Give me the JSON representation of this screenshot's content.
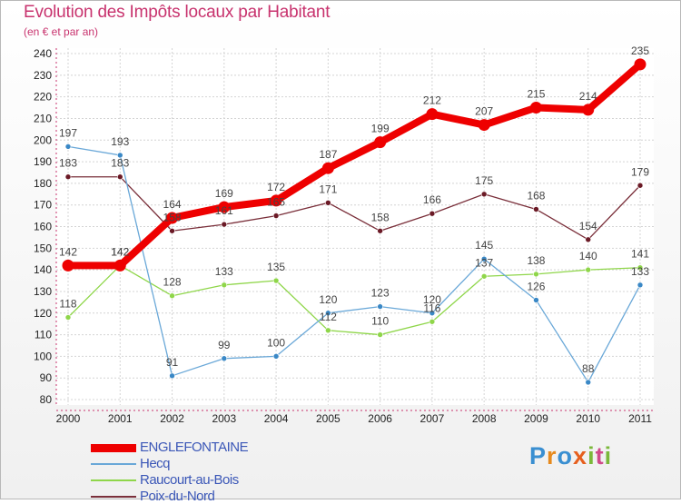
{
  "title": "Evolution des Impôts locaux par Habitant",
  "subtitle": "(en € et par an)",
  "logo": {
    "letters": [
      "P",
      "r",
      "o",
      "x",
      "i",
      "t",
      "i"
    ],
    "colors": [
      "#3a8fd1",
      "#e68a1e",
      "#3a8fd1",
      "#e65f1e",
      "#7bb83a",
      "#d04a8a",
      "#7bb83a"
    ]
  },
  "chart_data": {
    "type": "line",
    "title": "Evolution des Impôts locaux par Habitant",
    "ylabel": "(en € et par an)",
    "x": [
      "2000",
      "2001",
      "2002",
      "2003",
      "2004",
      "2005",
      "2006",
      "2007",
      "2008",
      "2009",
      "2010",
      "2011"
    ],
    "ylim": [
      80,
      240
    ],
    "yticks": [
      "80",
      "90",
      "100",
      "110",
      "120",
      "130",
      "140",
      "150",
      "160",
      "170",
      "180",
      "190",
      "200",
      "210",
      "220",
      "230",
      "240"
    ],
    "grid": true,
    "legend_position": "bottom-left",
    "series": [
      {
        "name": "Poix-du-Nord",
        "color": "#6b1a26",
        "line_color": "#7a2f3a",
        "values": [
          183,
          183,
          158,
          161,
          165,
          171,
          158,
          166,
          175,
          168,
          154,
          179
        ],
        "labels": [
          "183",
          "183",
          "158",
          "161",
          "165",
          "171",
          "158",
          "166",
          "175",
          "168",
          "154",
          "179"
        ]
      },
      {
        "name": "Raucourt-au-Bois",
        "color": "#8fd64a",
        "line_color": "#8fd64a",
        "values": [
          118,
          142,
          128,
          133,
          135,
          112,
          110,
          116,
          137,
          138,
          140,
          141
        ],
        "labels": [
          "118",
          "142",
          "128",
          "133",
          "135",
          "112",
          "110",
          "116",
          "137",
          "138",
          "140",
          "141"
        ]
      },
      {
        "name": "Hecq",
        "color": "#3a88c6",
        "line_color": "#6aa8d8",
        "values": [
          197,
          193,
          91,
          99,
          100,
          120,
          123,
          120,
          145,
          126,
          88,
          133
        ],
        "labels": [
          "197",
          "193",
          "91",
          "99",
          "100",
          "120",
          "123",
          "120",
          "145",
          "126",
          "88",
          "133"
        ]
      },
      {
        "name": "ENGLEFONTAINE",
        "color": "#ee0000",
        "line_color": "#ee0000",
        "values": [
          142,
          142,
          164,
          169,
          172,
          187,
          199,
          212,
          207,
          215,
          214,
          235
        ],
        "labels": [
          "142",
          "142",
          "164",
          "169",
          "172",
          "187",
          "199",
          "212",
          "207",
          "215",
          "214",
          "235"
        ]
      }
    ]
  }
}
